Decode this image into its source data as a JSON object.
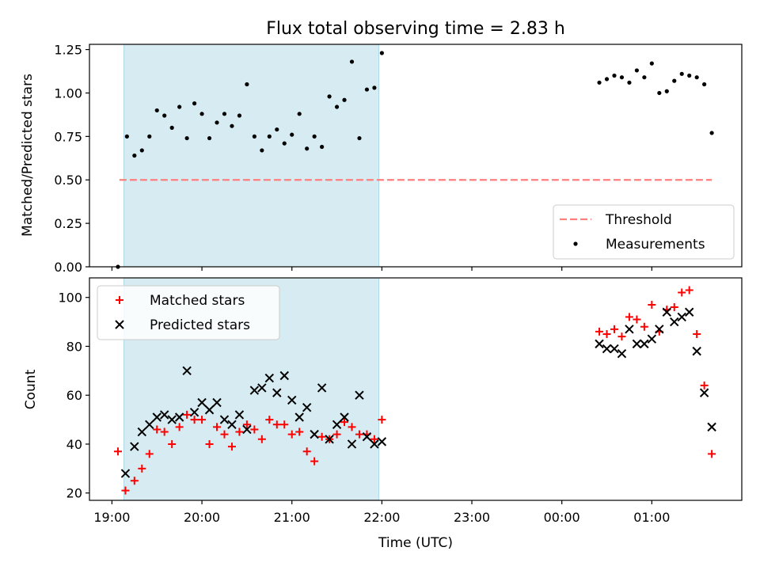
{
  "chart_data": {
    "type": "scatter",
    "title": "Flux total observing time = 2.83 h",
    "xlabel": "Time (UTC)",
    "x_ticks": [
      "19:00",
      "20:00",
      "21:00",
      "22:00",
      "23:00",
      "00:00",
      "01:00"
    ],
    "xlim": [
      "18:45",
      "02:00"
    ],
    "shaded_span": {
      "start": "19:08",
      "end": "21:58",
      "color": "#add8e6"
    },
    "panels": [
      {
        "ylabel": "Matched/Predicted stars",
        "ylim": [
          0,
          1.28
        ],
        "yticks": [
          "0.00",
          "0.25",
          "0.50",
          "0.75",
          "1.00",
          "1.25"
        ],
        "threshold": {
          "name": "Threshold",
          "value": 0.5,
          "start": "19:05",
          "end": "01:40",
          "color": "#ff7f7f"
        },
        "legend_position": "bottom-right",
        "series": [
          {
            "name": "Measurements",
            "color": "#000000",
            "marker": "dot",
            "points": [
              [
                "19:04",
                0.0
              ],
              [
                "19:10",
                0.75
              ],
              [
                "19:15",
                0.64
              ],
              [
                "19:20",
                0.67
              ],
              [
                "19:25",
                0.75
              ],
              [
                "19:30",
                0.9
              ],
              [
                "19:35",
                0.87
              ],
              [
                "19:40",
                0.8
              ],
              [
                "19:45",
                0.92
              ],
              [
                "19:50",
                0.74
              ],
              [
                "19:55",
                0.94
              ],
              [
                "20:00",
                0.88
              ],
              [
                "20:05",
                0.74
              ],
              [
                "20:10",
                0.83
              ],
              [
                "20:15",
                0.88
              ],
              [
                "20:20",
                0.81
              ],
              [
                "20:25",
                0.87
              ],
              [
                "20:30",
                1.05
              ],
              [
                "20:35",
                0.75
              ],
              [
                "20:40",
                0.67
              ],
              [
                "20:45",
                0.75
              ],
              [
                "20:50",
                0.79
              ],
              [
                "20:55",
                0.71
              ],
              [
                "21:00",
                0.76
              ],
              [
                "21:05",
                0.88
              ],
              [
                "21:10",
                0.68
              ],
              [
                "21:15",
                0.75
              ],
              [
                "21:20",
                0.69
              ],
              [
                "21:25",
                0.98
              ],
              [
                "21:30",
                0.92
              ],
              [
                "21:35",
                0.96
              ],
              [
                "21:40",
                1.18
              ],
              [
                "21:45",
                0.74
              ],
              [
                "21:50",
                1.02
              ],
              [
                "21:55",
                1.03
              ],
              [
                "22:00",
                1.23
              ],
              [
                "00:25",
                1.06
              ],
              [
                "00:30",
                1.08
              ],
              [
                "00:35",
                1.1
              ],
              [
                "00:40",
                1.09
              ],
              [
                "00:45",
                1.06
              ],
              [
                "00:50",
                1.13
              ],
              [
                "00:55",
                1.09
              ],
              [
                "01:00",
                1.17
              ],
              [
                "01:05",
                1.0
              ],
              [
                "01:10",
                1.01
              ],
              [
                "01:15",
                1.07
              ],
              [
                "01:20",
                1.11
              ],
              [
                "01:25",
                1.1
              ],
              [
                "01:30",
                1.09
              ],
              [
                "01:35",
                1.05
              ],
              [
                "01:40",
                0.77
              ]
            ]
          }
        ]
      },
      {
        "ylabel": "Count",
        "ylim": [
          17,
          108
        ],
        "yticks": [
          "20",
          "40",
          "60",
          "80",
          "100"
        ],
        "legend_position": "top-left",
        "series": [
          {
            "name": "Matched stars",
            "color": "#ff0000",
            "marker": "plus",
            "points": [
              [
                "19:04",
                37
              ],
              [
                "19:09",
                21
              ],
              [
                "19:15",
                25
              ],
              [
                "19:20",
                30
              ],
              [
                "19:25",
                36
              ],
              [
                "19:30",
                46
              ],
              [
                "19:35",
                45
              ],
              [
                "19:40",
                40
              ],
              [
                "19:45",
                47
              ],
              [
                "19:50",
                52
              ],
              [
                "19:55",
                50
              ],
              [
                "20:00",
                50
              ],
              [
                "20:05",
                40
              ],
              [
                "20:10",
                47
              ],
              [
                "20:15",
                44
              ],
              [
                "20:20",
                39
              ],
              [
                "20:25",
                45
              ],
              [
                "20:30",
                48
              ],
              [
                "20:35",
                46
              ],
              [
                "20:40",
                42
              ],
              [
                "20:45",
                50
              ],
              [
                "20:50",
                48
              ],
              [
                "20:55",
                48
              ],
              [
                "21:00",
                44
              ],
              [
                "21:05",
                45
              ],
              [
                "21:10",
                37
              ],
              [
                "21:15",
                33
              ],
              [
                "21:20",
                43
              ],
              [
                "21:25",
                42
              ],
              [
                "21:30",
                44
              ],
              [
                "21:35",
                49
              ],
              [
                "21:40",
                47
              ],
              [
                "21:45",
                44
              ],
              [
                "21:50",
                44
              ],
              [
                "21:55",
                42
              ],
              [
                "22:00",
                50
              ],
              [
                "00:25",
                86
              ],
              [
                "00:30",
                85
              ],
              [
                "00:35",
                87
              ],
              [
                "00:40",
                84
              ],
              [
                "00:45",
                92
              ],
              [
                "00:50",
                91
              ],
              [
                "00:55",
                88
              ],
              [
                "01:00",
                97
              ],
              [
                "01:05",
                86
              ],
              [
                "01:10",
                95
              ],
              [
                "01:15",
                96
              ],
              [
                "01:20",
                102
              ],
              [
                "01:25",
                103
              ],
              [
                "01:30",
                85
              ],
              [
                "01:35",
                64
              ],
              [
                "01:40",
                36
              ]
            ]
          },
          {
            "name": "Predicted stars",
            "color": "#000000",
            "marker": "x",
            "points": [
              [
                "19:09",
                28
              ],
              [
                "19:15",
                39
              ],
              [
                "19:20",
                45
              ],
              [
                "19:25",
                48
              ],
              [
                "19:30",
                51
              ],
              [
                "19:35",
                52
              ],
              [
                "19:40",
                50
              ],
              [
                "19:45",
                51
              ],
              [
                "19:50",
                70
              ],
              [
                "19:55",
                53
              ],
              [
                "20:00",
                57
              ],
              [
                "20:05",
                54
              ],
              [
                "20:10",
                57
              ],
              [
                "20:15",
                50
              ],
              [
                "20:20",
                48
              ],
              [
                "20:25",
                52
              ],
              [
                "20:30",
                46
              ],
              [
                "20:35",
                62
              ],
              [
                "20:40",
                63
              ],
              [
                "20:45",
                67
              ],
              [
                "20:50",
                61
              ],
              [
                "20:55",
                68
              ],
              [
                "21:00",
                58
              ],
              [
                "21:05",
                51
              ],
              [
                "21:10",
                55
              ],
              [
                "21:15",
                44
              ],
              [
                "21:20",
                63
              ],
              [
                "21:25",
                42
              ],
              [
                "21:30",
                48
              ],
              [
                "21:35",
                51
              ],
              [
                "21:40",
                40
              ],
              [
                "21:45",
                60
              ],
              [
                "21:50",
                43
              ],
              [
                "21:55",
                40
              ],
              [
                "22:00",
                41
              ],
              [
                "00:25",
                81
              ],
              [
                "00:30",
                79
              ],
              [
                "00:35",
                79
              ],
              [
                "00:40",
                77
              ],
              [
                "00:45",
                87
              ],
              [
                "00:50",
                81
              ],
              [
                "00:55",
                81
              ],
              [
                "01:00",
                83
              ],
              [
                "01:05",
                87
              ],
              [
                "01:10",
                94
              ],
              [
                "01:15",
                90
              ],
              [
                "01:20",
                92
              ],
              [
                "01:25",
                94
              ],
              [
                "01:30",
                78
              ],
              [
                "01:35",
                61
              ],
              [
                "01:40",
                47
              ]
            ]
          }
        ]
      }
    ]
  }
}
